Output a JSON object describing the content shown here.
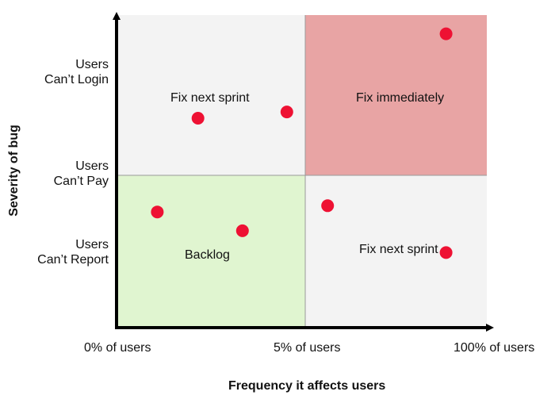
{
  "chart_data": {
    "type": "scatter",
    "title": "",
    "xlabel": "Frequency it affects users",
    "ylabel": "Severity of bug",
    "x_ticks": [
      "0% of users",
      "5% of users",
      "100% of users"
    ],
    "y_ticks": [
      {
        "line1": "Users",
        "line2": "Can’t Login"
      },
      {
        "line1": "Users",
        "line2": "Can’t Pay"
      },
      {
        "line1": "Users",
        "line2": "Can’t Report"
      }
    ],
    "xlim": [
      0,
      1
    ],
    "ylim": [
      0,
      1
    ],
    "quadrants": [
      {
        "label": "Fix next sprint",
        "color": "#f3f3f3"
      },
      {
        "label": "Fix immediately",
        "color": "#e8a4a4"
      },
      {
        "label": "Backlog",
        "color": "#e0f5d0"
      },
      {
        "label": "Fix next sprint",
        "color": "#f3f3f3"
      }
    ],
    "points": [
      {
        "x": 0.89,
        "y": 0.94
      },
      {
        "x": 0.46,
        "y": 0.69
      },
      {
        "x": 0.22,
        "y": 0.67
      },
      {
        "x": 0.11,
        "y": 0.37
      },
      {
        "x": 0.34,
        "y": 0.31
      },
      {
        "x": 0.57,
        "y": 0.39
      },
      {
        "x": 0.89,
        "y": 0.24
      }
    ],
    "point_color": "#ee1133"
  }
}
